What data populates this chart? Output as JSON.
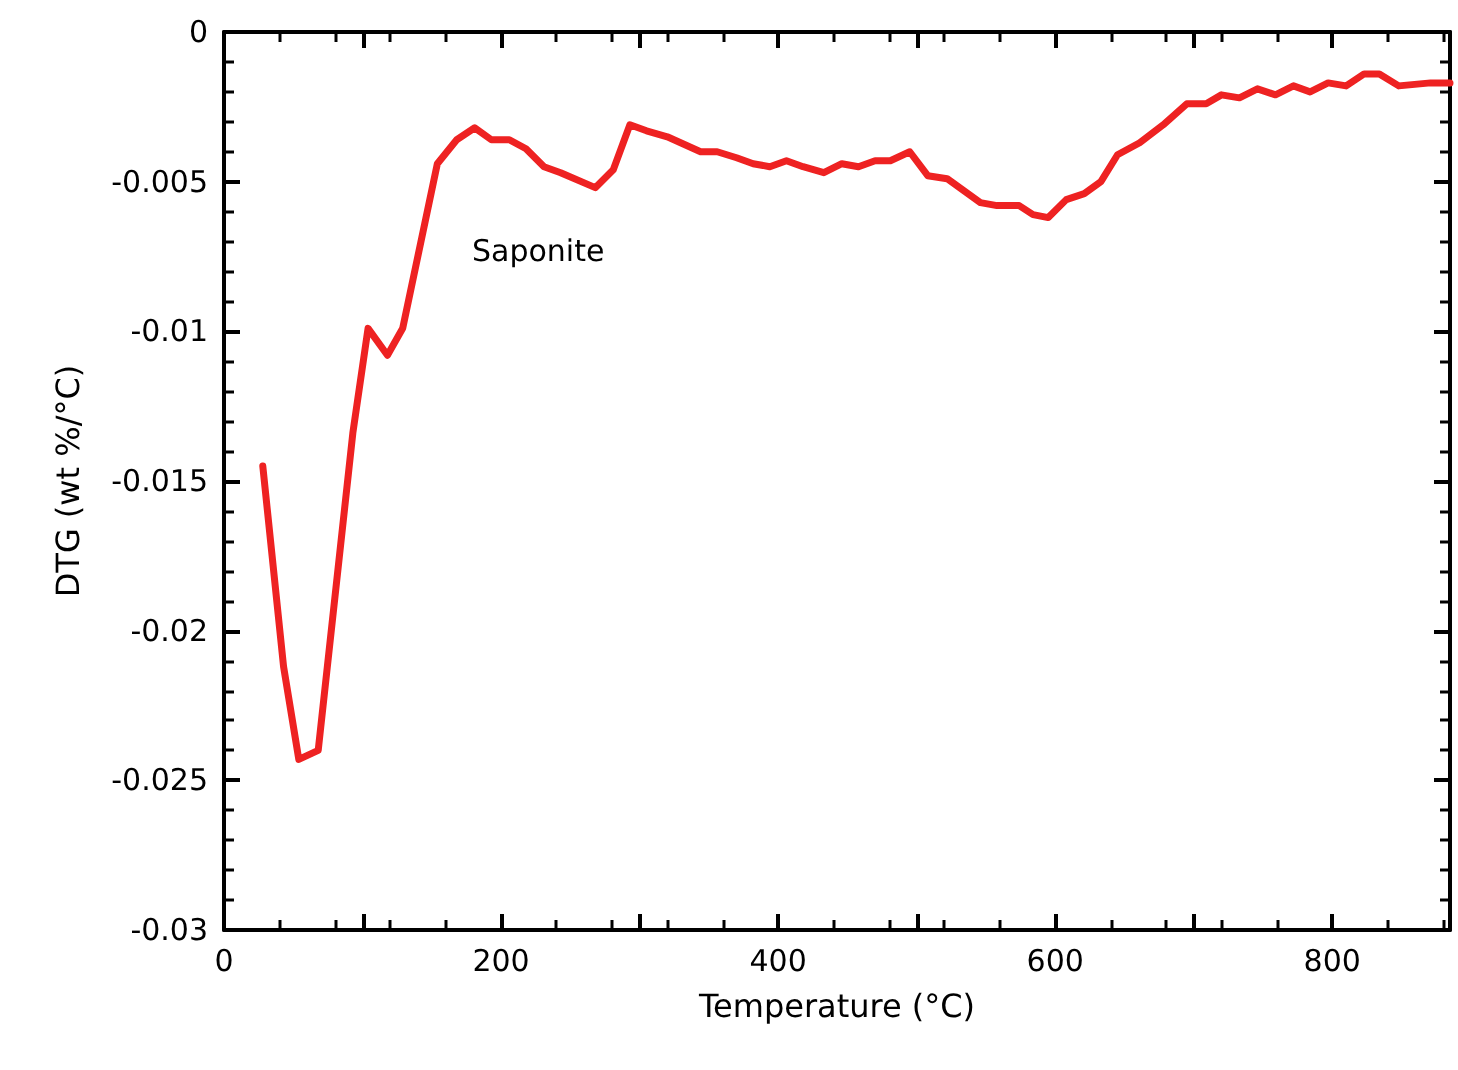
{
  "chart_data": {
    "type": "line",
    "xlabel": "Temperature (°C)",
    "ylabel": "DTG (wt %/°C)",
    "annotations": [
      "Saponite"
    ],
    "xlim": [
      0,
      885
    ],
    "xticks": [
      0,
      {
        "value": 100,
        "label": null
      },
      200,
      {
        "value": 300,
        "label": null
      },
      400,
      {
        "value": 500,
        "label": null
      },
      600,
      {
        "value": 700,
        "label": null
      },
      800
    ],
    "ylim": [
      -0.03,
      0
    ],
    "yticks": [
      -0.03,
      -0.025,
      -0.02,
      -0.015,
      -0.01,
      -0.005,
      0
    ],
    "grid": false,
    "marker": "none",
    "line_style": "solid",
    "series": [
      {
        "color": "#ee2222",
        "x": [
          28,
          43,
          54,
          68,
          93,
          104,
          118,
          129,
          154,
          168,
          181,
          193,
          206,
          218,
          231,
          243,
          268,
          281,
          293,
          305,
          320,
          344,
          356,
          370,
          382,
          394,
          406,
          418,
          433,
          446,
          458,
          470,
          481,
          495,
          508,
          522,
          534,
          546,
          558,
          574,
          584,
          595,
          608,
          621,
          633,
          645,
          661,
          678,
          695,
          709,
          720,
          733,
          746,
          759,
          772,
          784,
          797,
          810,
          823,
          834,
          848,
          871,
          885
        ],
        "values": [
          -0.0145,
          -0.0212,
          -0.0243,
          -0.024,
          -0.0134,
          -0.0099,
          -0.0108,
          -0.0099,
          -0.0044,
          -0.0036,
          -0.0032,
          -0.0036,
          -0.0036,
          -0.0039,
          -0.0045,
          -0.0047,
          -0.0052,
          -0.0046,
          -0.0031,
          -0.0033,
          -0.0035,
          -0.004,
          -0.004,
          -0.0042,
          -0.0044,
          -0.0045,
          -0.0043,
          -0.0045,
          -0.0047,
          -0.0044,
          -0.0045,
          -0.0043,
          -0.0043,
          -0.004,
          -0.0048,
          -0.0049,
          -0.0053,
          -0.0057,
          -0.0058,
          -0.0058,
          -0.0061,
          -0.0062,
          -0.0056,
          -0.0054,
          -0.005,
          -0.0041,
          -0.0037,
          -0.0031,
          -0.0024,
          -0.0024,
          -0.0021,
          -0.0022,
          -0.0019,
          -0.0021,
          -0.0018,
          -0.002,
          -0.0017,
          -0.0018,
          -0.0014,
          -0.0014,
          -0.0018,
          -0.0017,
          -0.0017
        ]
      }
    ]
  }
}
